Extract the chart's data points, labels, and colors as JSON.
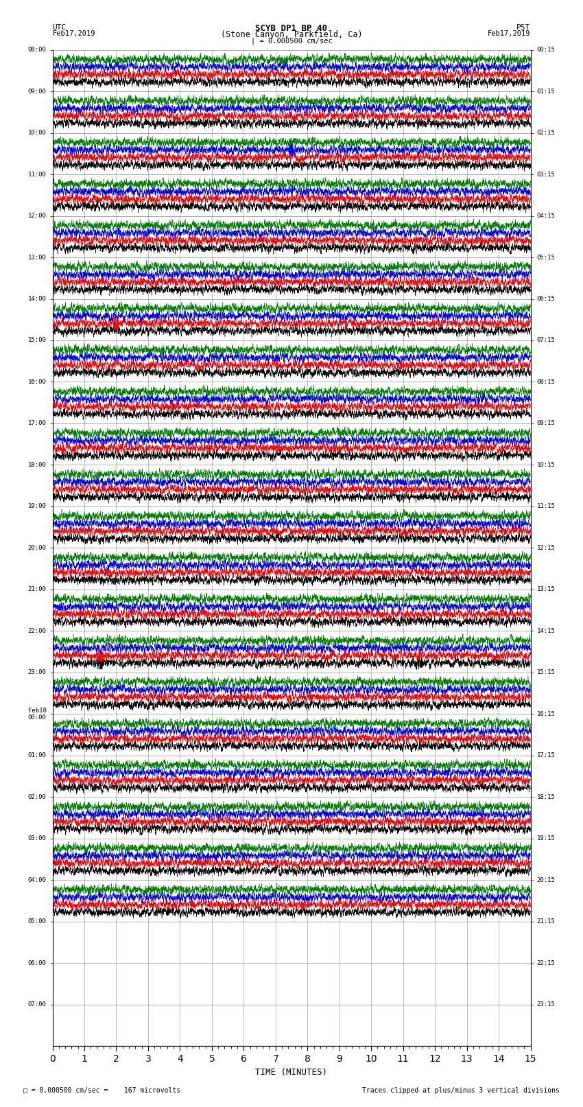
{
  "title_line1": "SCYB DP1 BP 40",
  "title_line2": "(Stone Canyon, Parkfield, Ca)",
  "scale_marker": "| = 0.000500 cm/sec",
  "bottom_left_text": "= 0.000500 cm/sec =    167 microvolts",
  "bottom_right_text": "Traces clipped at plus/minus 3 vertical divisions",
  "xlabel": "TIME (MINUTES)",
  "utc_label_top": "UTC",
  "utc_date_top": "Feb17,2019",
  "pst_label_top": "PST",
  "pst_date_top": "Feb17,2019",
  "utc_times": [
    "08:00",
    "09:00",
    "10:00",
    "11:00",
    "12:00",
    "13:00",
    "14:00",
    "15:00",
    "16:00",
    "17:00",
    "18:00",
    "19:00",
    "20:00",
    "21:00",
    "22:00",
    "23:00",
    "Feb18\n00:00",
    "01:00",
    "02:00",
    "03:00",
    "04:00",
    "05:00",
    "06:00",
    "07:00"
  ],
  "pst_times": [
    "00:15",
    "01:15",
    "02:15",
    "03:15",
    "04:15",
    "05:15",
    "06:15",
    "07:15",
    "08:15",
    "09:15",
    "10:15",
    "11:15",
    "12:15",
    "13:15",
    "14:15",
    "15:15",
    "16:15",
    "17:15",
    "18:15",
    "19:15",
    "20:15",
    "21:15",
    "22:15",
    "23:15"
  ],
  "num_rows": 24,
  "active_rows": 21,
  "colors": [
    "black",
    "red",
    "blue",
    "green"
  ],
  "xmin": 0,
  "xmax": 15,
  "background_color": "white",
  "grid_color": "#888888",
  "special_events": [
    {
      "row": 1,
      "trace": 3,
      "time": 11.5,
      "amplitude_scale": 25.0
    },
    {
      "row": 1,
      "trace": 2,
      "time": 11.5,
      "amplitude_scale": 8.0
    },
    {
      "row": 2,
      "trace": 2,
      "time": 7.5,
      "amplitude_scale": 30.0
    },
    {
      "row": 2,
      "trace": 3,
      "time": 7.5,
      "amplitude_scale": 8.0
    },
    {
      "row": 3,
      "trace": 2,
      "time": 7.5,
      "amplitude_scale": 8.0
    },
    {
      "row": 6,
      "trace": 1,
      "time": 2.0,
      "amplitude_scale": 25.0
    },
    {
      "row": 6,
      "trace": 3,
      "time": 2.2,
      "amplitude_scale": 15.0
    },
    {
      "row": 14,
      "trace": 0,
      "time": 1.5,
      "amplitude_scale": 30.0
    },
    {
      "row": 14,
      "trace": 1,
      "time": 1.5,
      "amplitude_scale": 20.0
    },
    {
      "row": 14,
      "trace": 0,
      "time": 11.5,
      "amplitude_scale": 25.0
    },
    {
      "row": 14,
      "trace": 1,
      "time": 11.5,
      "amplitude_scale": 15.0
    }
  ]
}
